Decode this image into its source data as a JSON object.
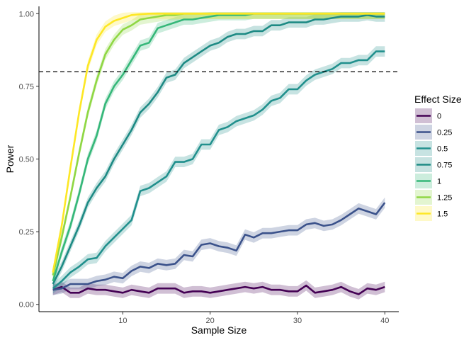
{
  "chart_data": {
    "type": "line",
    "title": "",
    "xlabel": "Sample Size",
    "ylabel": "Power",
    "xlim": [
      0.4,
      41.6
    ],
    "ylim": [
      -0.025,
      1.025
    ],
    "x_ticks": [
      10,
      20,
      30,
      40
    ],
    "x_tick_labels": [
      "10",
      "20",
      "30",
      "40"
    ],
    "y_ticks": [
      0,
      0.25,
      0.5,
      0.75,
      1
    ],
    "y_tick_labels": [
      "0.00",
      "0.25",
      "0.50",
      "0.75",
      "1.00"
    ],
    "reference_line": {
      "y": 0.8,
      "style": "dashed",
      "color": "#000000"
    },
    "grid": false,
    "legend": {
      "title": "Effect Size",
      "position": "right"
    },
    "x": [
      2,
      3,
      4,
      5,
      6,
      7,
      8,
      9,
      10,
      11,
      12,
      13,
      14,
      15,
      16,
      17,
      18,
      19,
      20,
      21,
      22,
      23,
      24,
      25,
      26,
      27,
      28,
      29,
      30,
      31,
      32,
      33,
      34,
      35,
      36,
      37,
      38,
      39,
      40
    ],
    "series": [
      {
        "name": "0",
        "color": "#440154",
        "values": [
          0.05,
          0.06,
          0.04,
          0.04,
          0.055,
          0.05,
          0.05,
          0.045,
          0.04,
          0.05,
          0.045,
          0.04,
          0.055,
          0.055,
          0.055,
          0.04,
          0.045,
          0.045,
          0.04,
          0.045,
          0.05,
          0.055,
          0.06,
          0.055,
          0.06,
          0.05,
          0.05,
          0.045,
          0.045,
          0.065,
          0.04,
          0.045,
          0.05,
          0.06,
          0.045,
          0.035,
          0.055,
          0.05,
          0.06
        ]
      },
      {
        "name": "0.25",
        "color": "#3b528b",
        "values": [
          0.05,
          0.055,
          0.07,
          0.07,
          0.07,
          0.08,
          0.085,
          0.095,
          0.09,
          0.115,
          0.13,
          0.125,
          0.14,
          0.135,
          0.14,
          0.17,
          0.165,
          0.205,
          0.21,
          0.2,
          0.195,
          0.185,
          0.24,
          0.23,
          0.245,
          0.245,
          0.25,
          0.255,
          0.255,
          0.275,
          0.28,
          0.27,
          0.275,
          0.29,
          0.31,
          0.33,
          0.32,
          0.31,
          0.35
        ]
      },
      {
        "name": "0.5",
        "color": "#21908d",
        "values": [
          0.055,
          0.08,
          0.11,
          0.13,
          0.155,
          0.16,
          0.2,
          0.23,
          0.26,
          0.29,
          0.39,
          0.4,
          0.42,
          0.44,
          0.49,
          0.49,
          0.5,
          0.55,
          0.55,
          0.6,
          0.61,
          0.63,
          0.64,
          0.65,
          0.67,
          0.7,
          0.71,
          0.74,
          0.74,
          0.77,
          0.79,
          0.8,
          0.81,
          0.83,
          0.83,
          0.84,
          0.84,
          0.87,
          0.87
        ]
      },
      {
        "name": "0.75",
        "color": "#1d8a84",
        "values": [
          0.07,
          0.13,
          0.2,
          0.27,
          0.35,
          0.4,
          0.44,
          0.5,
          0.55,
          0.6,
          0.66,
          0.69,
          0.73,
          0.78,
          0.79,
          0.83,
          0.85,
          0.87,
          0.89,
          0.9,
          0.92,
          0.93,
          0.93,
          0.94,
          0.94,
          0.96,
          0.96,
          0.97,
          0.97,
          0.97,
          0.98,
          0.98,
          0.985,
          0.99,
          0.99,
          0.99,
          0.995,
          0.99,
          0.99
        ]
      },
      {
        "name": "1",
        "color": "#35b779",
        "values": [
          0.08,
          0.18,
          0.27,
          0.38,
          0.5,
          0.58,
          0.69,
          0.75,
          0.79,
          0.84,
          0.89,
          0.9,
          0.95,
          0.96,
          0.97,
          0.98,
          0.98,
          0.985,
          0.99,
          0.995,
          0.995,
          0.995,
          0.995,
          1,
          1,
          1,
          1,
          1,
          1,
          1,
          1,
          1,
          1,
          1,
          1,
          1,
          1,
          1,
          1
        ]
      },
      {
        "name": "1.25",
        "color": "#8fd744",
        "values": [
          0.1,
          0.23,
          0.37,
          0.52,
          0.66,
          0.77,
          0.86,
          0.91,
          0.945,
          0.96,
          0.98,
          0.985,
          0.99,
          0.995,
          0.995,
          1,
          1,
          1,
          1,
          1,
          1,
          1,
          1,
          1,
          1,
          1,
          1,
          1,
          1,
          1,
          1,
          1,
          1,
          1,
          1,
          1,
          1,
          1,
          1
        ]
      },
      {
        "name": "1.5",
        "color": "#fde725",
        "values": [
          0.11,
          0.27,
          0.47,
          0.66,
          0.82,
          0.91,
          0.955,
          0.975,
          0.985,
          0.995,
          0.998,
          1,
          1,
          1,
          1,
          1,
          1,
          1,
          1,
          1,
          1,
          1,
          1,
          1,
          1,
          1,
          1,
          1,
          1,
          1,
          1,
          1,
          1,
          1,
          1,
          1,
          1,
          1,
          1
        ]
      }
    ]
  }
}
